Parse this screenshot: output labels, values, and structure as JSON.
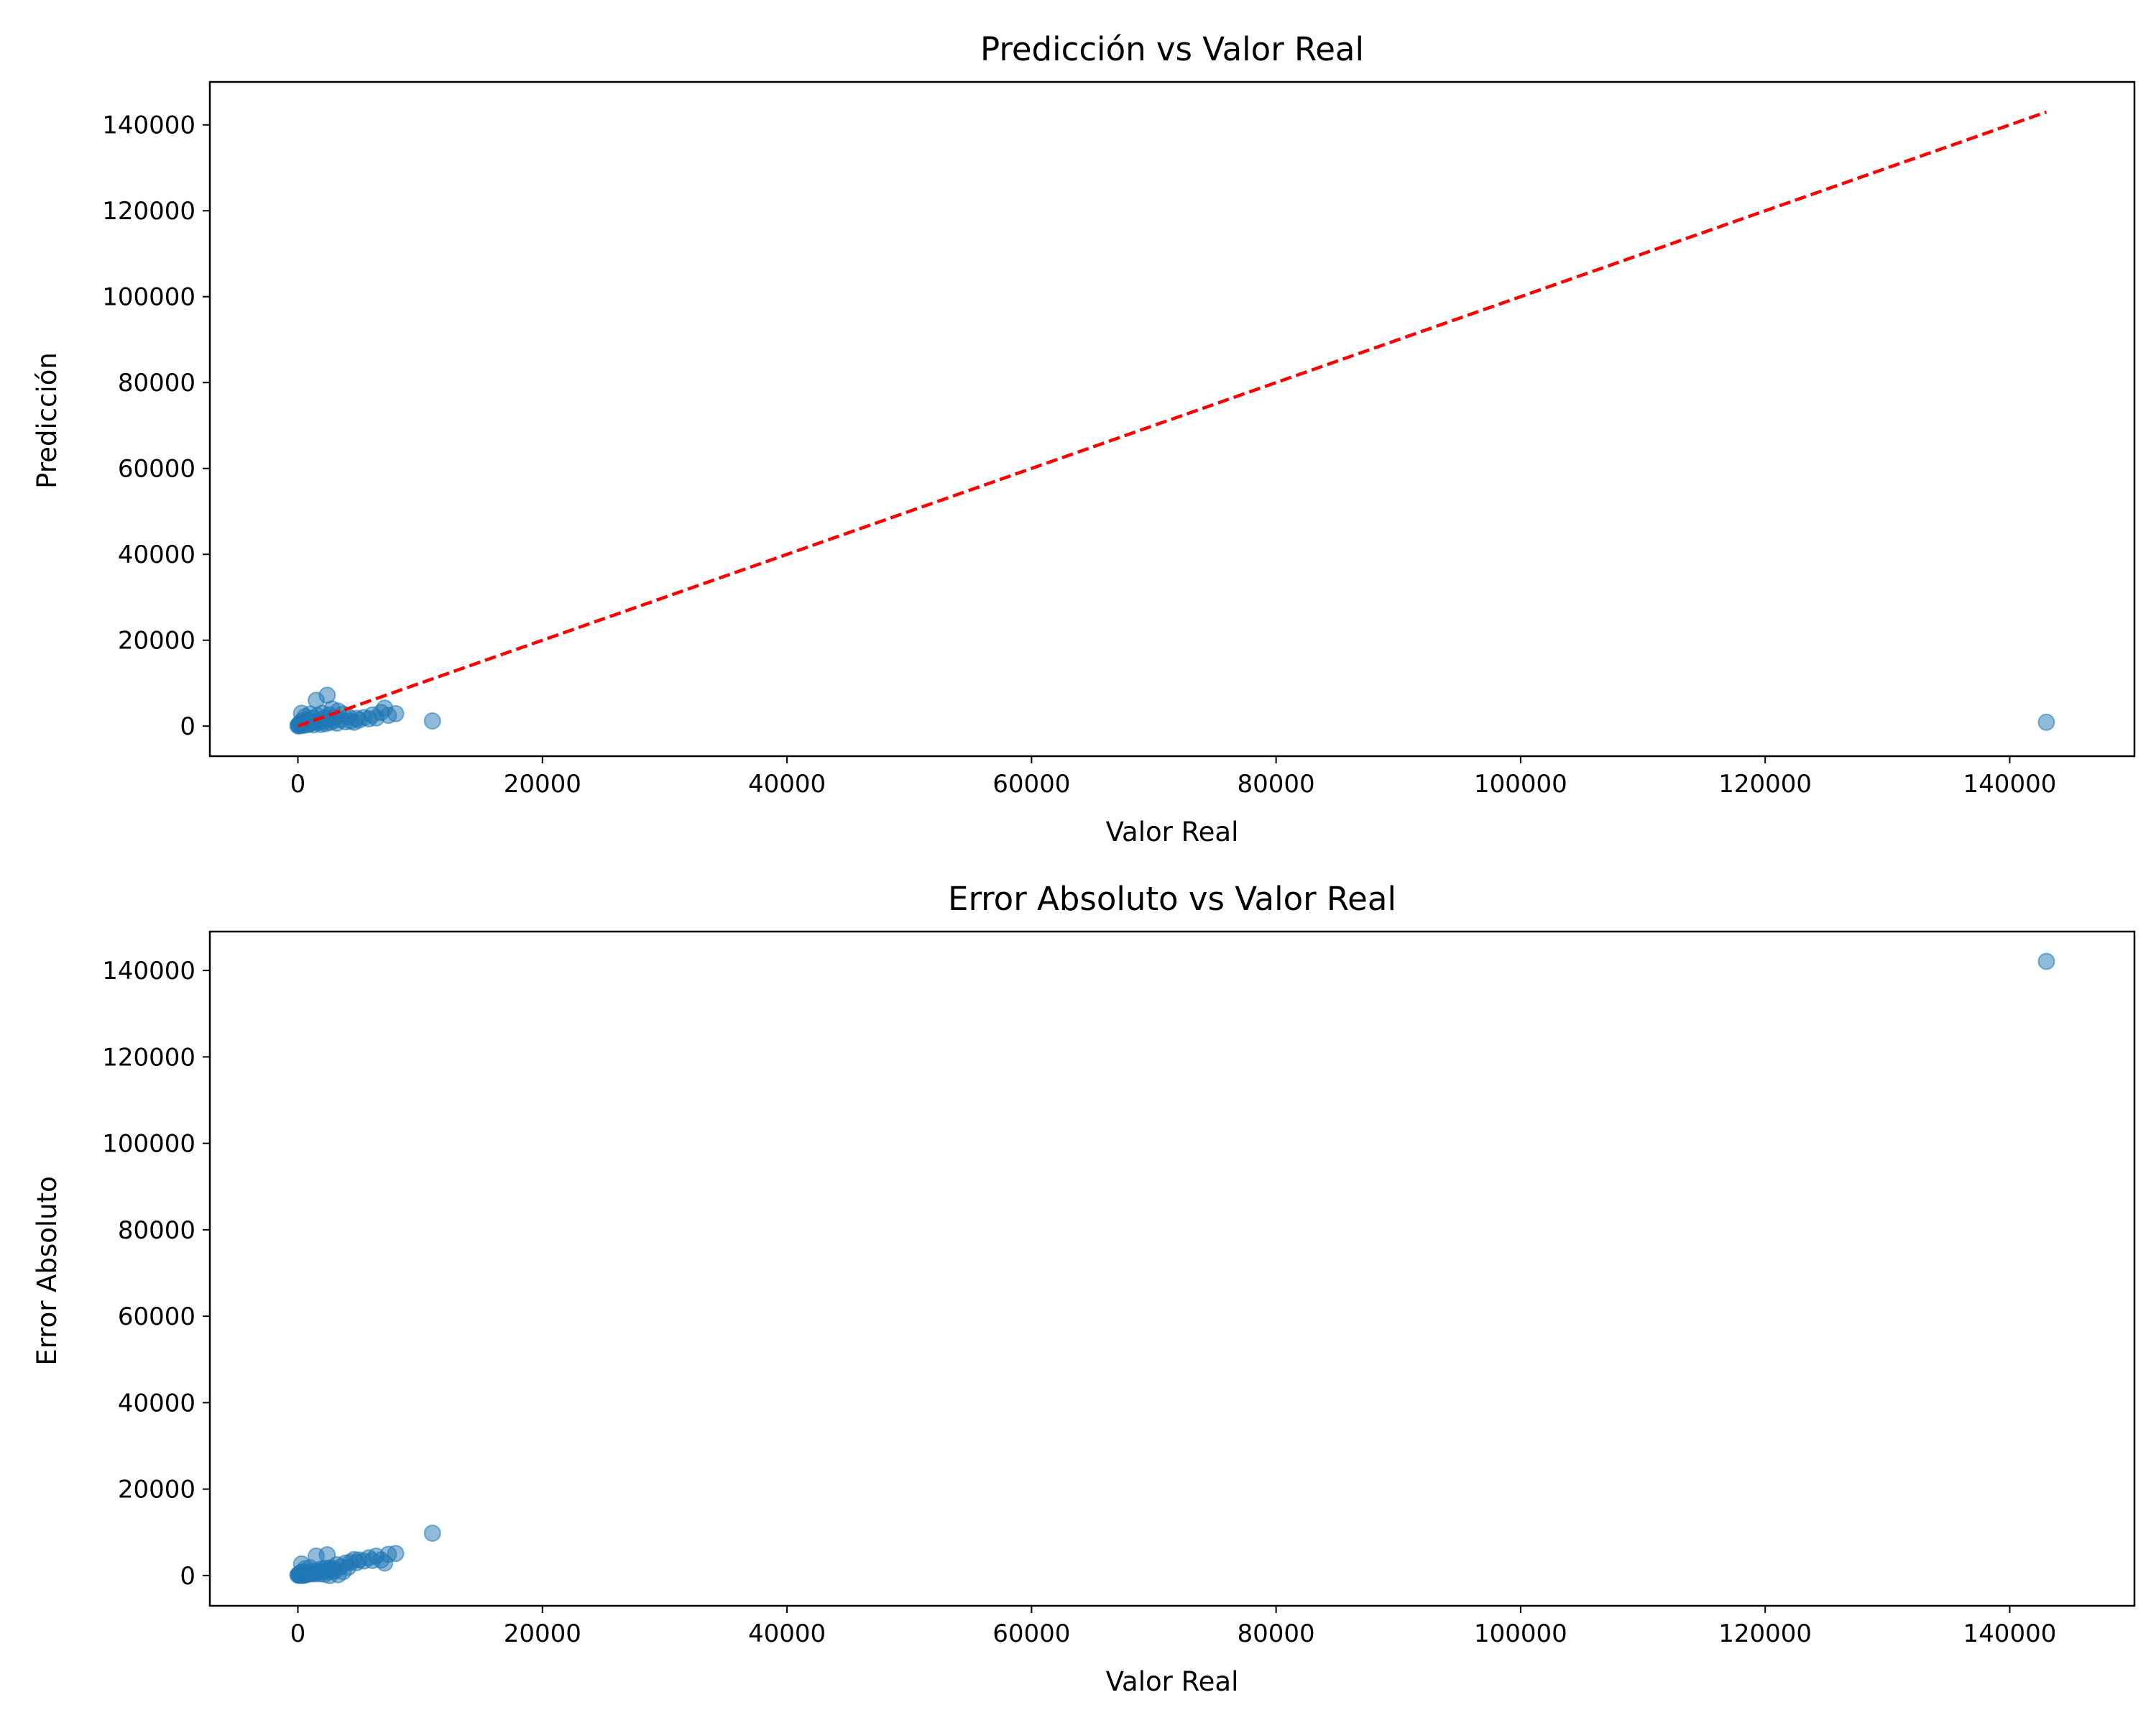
{
  "chart_data": [
    {
      "type": "scatter",
      "title": "Predicción vs Valor Real",
      "xlabel": "Valor Real",
      "ylabel": "Predicción",
      "xlim": [
        -7200,
        150200
      ],
      "ylim": [
        -7000,
        150000
      ],
      "xticks": [
        0,
        20000,
        40000,
        60000,
        80000,
        100000,
        120000,
        140000
      ],
      "yticks": [
        0,
        20000,
        40000,
        60000,
        80000,
        100000,
        120000,
        140000
      ],
      "tick_labels_x": [
        "0",
        "20000",
        "40000",
        "60000",
        "80000",
        "100000",
        "120000",
        "140000"
      ],
      "tick_labels_y": [
        "0",
        "20000",
        "40000",
        "60000",
        "80000",
        "100000",
        "120000",
        "140000"
      ],
      "grid": false,
      "point_color": "#1f77b4",
      "point_alpha": 0.5,
      "reference_line": {
        "style": "dashed",
        "color": "#ff0000",
        "x": [
          0,
          143000
        ],
        "y": [
          0,
          143000
        ]
      },
      "points": [
        {
          "x": 0,
          "y": 100
        },
        {
          "x": 50,
          "y": 300
        },
        {
          "x": 100,
          "y": 50
        },
        {
          "x": 150,
          "y": 500
        },
        {
          "x": 200,
          "y": 800
        },
        {
          "x": 250,
          "y": 200
        },
        {
          "x": 300,
          "y": 3000
        },
        {
          "x": 350,
          "y": 1200
        },
        {
          "x": 400,
          "y": 400
        },
        {
          "x": 450,
          "y": 150
        },
        {
          "x": 500,
          "y": 600
        },
        {
          "x": 600,
          "y": 2200
        },
        {
          "x": 700,
          "y": 900
        },
        {
          "x": 750,
          "y": 350
        },
        {
          "x": 800,
          "y": 1500
        },
        {
          "x": 900,
          "y": 500
        },
        {
          "x": 1000,
          "y": 2800
        },
        {
          "x": 1100,
          "y": 700
        },
        {
          "x": 1200,
          "y": 1800
        },
        {
          "x": 1300,
          "y": 300
        },
        {
          "x": 1400,
          "y": 1000
        },
        {
          "x": 1500,
          "y": 6000
        },
        {
          "x": 1600,
          "y": 2400
        },
        {
          "x": 1700,
          "y": 800
        },
        {
          "x": 1800,
          "y": 1400
        },
        {
          "x": 1900,
          "y": 400
        },
        {
          "x": 2000,
          "y": 3000
        },
        {
          "x": 2100,
          "y": 1100
        },
        {
          "x": 2200,
          "y": 1900
        },
        {
          "x": 2300,
          "y": 600
        },
        {
          "x": 2400,
          "y": 7200
        },
        {
          "x": 2500,
          "y": 1600
        },
        {
          "x": 2600,
          "y": 2600
        },
        {
          "x": 2700,
          "y": 900
        },
        {
          "x": 2800,
          "y": 4000
        },
        {
          "x": 2900,
          "y": 1300
        },
        {
          "x": 3000,
          "y": 2000
        },
        {
          "x": 3200,
          "y": 700
        },
        {
          "x": 3300,
          "y": 3500
        },
        {
          "x": 3500,
          "y": 1500
        },
        {
          "x": 3700,
          "y": 2800
        },
        {
          "x": 3900,
          "y": 1000
        },
        {
          "x": 4100,
          "y": 2200
        },
        {
          "x": 4300,
          "y": 1200
        },
        {
          "x": 4600,
          "y": 900
        },
        {
          "x": 4800,
          "y": 1800
        },
        {
          "x": 5000,
          "y": 1400
        },
        {
          "x": 5400,
          "y": 2000
        },
        {
          "x": 5800,
          "y": 1700
        },
        {
          "x": 6100,
          "y": 2600
        },
        {
          "x": 6400,
          "y": 1900
        },
        {
          "x": 6800,
          "y": 3200
        },
        {
          "x": 7100,
          "y": 4200
        },
        {
          "x": 7400,
          "y": 2500
        },
        {
          "x": 8000,
          "y": 2900
        },
        {
          "x": 11000,
          "y": 1200
        },
        {
          "x": 143000,
          "y": 900
        }
      ]
    },
    {
      "type": "scatter",
      "title": "Error Absoluto vs Valor Real",
      "xlabel": "Valor Real",
      "ylabel": "Error Absoluto",
      "xlim": [
        -7200,
        150200
      ],
      "ylim": [
        -7000,
        149000
      ],
      "xticks": [
        0,
        20000,
        40000,
        60000,
        80000,
        100000,
        120000,
        140000
      ],
      "yticks": [
        0,
        20000,
        40000,
        60000,
        80000,
        100000,
        120000,
        140000
      ],
      "tick_labels_x": [
        "0",
        "20000",
        "40000",
        "60000",
        "80000",
        "100000",
        "120000",
        "140000"
      ],
      "tick_labels_y": [
        "0",
        "20000",
        "40000",
        "60000",
        "80000",
        "100000",
        "120000",
        "140000"
      ],
      "grid": false,
      "point_color": "#1f77b4",
      "point_alpha": 0.5,
      "points": [
        {
          "x": 0,
          "y": 100
        },
        {
          "x": 50,
          "y": 250
        },
        {
          "x": 100,
          "y": 50
        },
        {
          "x": 150,
          "y": 350
        },
        {
          "x": 200,
          "y": 600
        },
        {
          "x": 250,
          "y": 50
        },
        {
          "x": 300,
          "y": 2700
        },
        {
          "x": 350,
          "y": 850
        },
        {
          "x": 400,
          "y": 0
        },
        {
          "x": 450,
          "y": 300
        },
        {
          "x": 500,
          "y": 100
        },
        {
          "x": 600,
          "y": 1600
        },
        {
          "x": 700,
          "y": 200
        },
        {
          "x": 750,
          "y": 400
        },
        {
          "x": 800,
          "y": 700
        },
        {
          "x": 900,
          "y": 400
        },
        {
          "x": 1000,
          "y": 1800
        },
        {
          "x": 1100,
          "y": 400
        },
        {
          "x": 1200,
          "y": 600
        },
        {
          "x": 1300,
          "y": 1000
        },
        {
          "x": 1400,
          "y": 400
        },
        {
          "x": 1500,
          "y": 4500
        },
        {
          "x": 1600,
          "y": 800
        },
        {
          "x": 1700,
          "y": 900
        },
        {
          "x": 1800,
          "y": 400
        },
        {
          "x": 1900,
          "y": 1500
        },
        {
          "x": 2000,
          "y": 1000
        },
        {
          "x": 2100,
          "y": 1000
        },
        {
          "x": 2200,
          "y": 300
        },
        {
          "x": 2300,
          "y": 1700
        },
        {
          "x": 2400,
          "y": 4800
        },
        {
          "x": 2500,
          "y": 900
        },
        {
          "x": 2600,
          "y": 0
        },
        {
          "x": 2700,
          "y": 1800
        },
        {
          "x": 2800,
          "y": 1200
        },
        {
          "x": 2900,
          "y": 1600
        },
        {
          "x": 3000,
          "y": 1000
        },
        {
          "x": 3200,
          "y": 2500
        },
        {
          "x": 3300,
          "y": 200
        },
        {
          "x": 3500,
          "y": 2000
        },
        {
          "x": 3700,
          "y": 900
        },
        {
          "x": 3900,
          "y": 2900
        },
        {
          "x": 4100,
          "y": 1900
        },
        {
          "x": 4300,
          "y": 3100
        },
        {
          "x": 4600,
          "y": 3700
        },
        {
          "x": 4800,
          "y": 3000
        },
        {
          "x": 5000,
          "y": 3600
        },
        {
          "x": 5400,
          "y": 3400
        },
        {
          "x": 5800,
          "y": 4100
        },
        {
          "x": 6100,
          "y": 3500
        },
        {
          "x": 6400,
          "y": 4500
        },
        {
          "x": 6800,
          "y": 3600
        },
        {
          "x": 7100,
          "y": 2900
        },
        {
          "x": 7400,
          "y": 4900
        },
        {
          "x": 8000,
          "y": 5100
        },
        {
          "x": 11000,
          "y": 9800
        },
        {
          "x": 143000,
          "y": 142100
        }
      ]
    }
  ]
}
